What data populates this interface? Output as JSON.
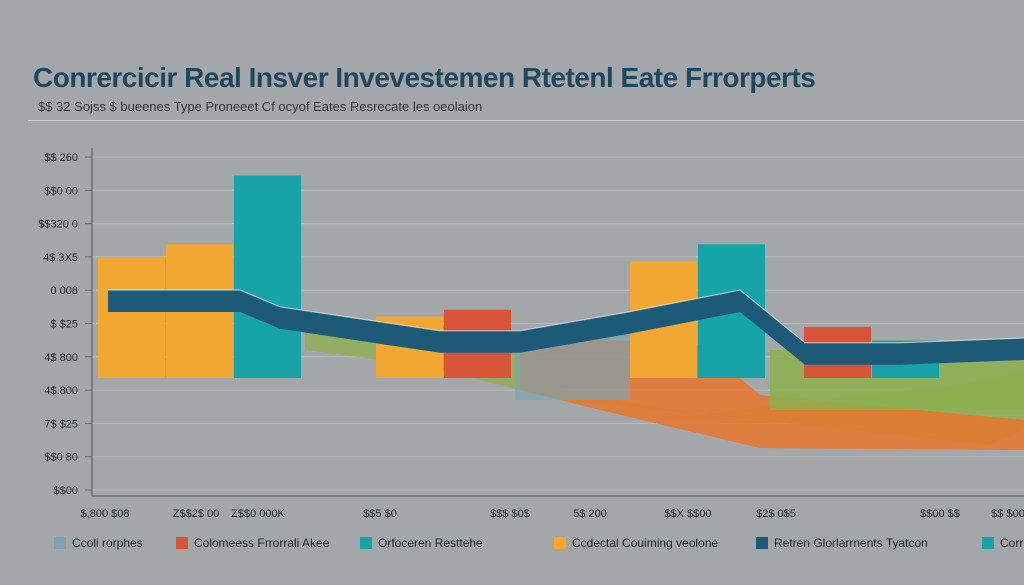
{
  "title": "Conrercicir Real Insver Invevestemen Rtetenl Eate Frrorperts",
  "subtitle": "$$ 32 Sojss $ bueenes Type Proneeet Cf ocyof Eates Resrecate les oeolaion",
  "colors": {
    "background": "#a4a7a9",
    "orange": "#f2a733",
    "red": "#d9553a",
    "teal": "#17a4a8",
    "green": "#8db04e",
    "navy": "#1d5a78",
    "blue_grey": "#7fa3b3"
  },
  "legend": [
    {
      "label": "Ccoli rorphes",
      "color": "#7fa3b3"
    },
    {
      "label": "Colomeess Frrorrali Akee",
      "color": "#d9553a"
    },
    {
      "label": "Orfoceren Resttehe",
      "color": "#17a4a8"
    },
    {
      "label": "Ccdectal Couiming veolone",
      "color": "#f2a733"
    },
    {
      "label": "Retren Glorlarrnents Tyatcon",
      "color": "#1d5a78"
    },
    {
      "label": "Corr",
      "color": "#17a4a8"
    }
  ],
  "chart_data": {
    "type": "bar",
    "title": "Conrercicir Real Insver Invevestemen Rtetenl Eate Frrorperts",
    "subtitle": "$$ 32 Sojss $ bueenes Type Proneeet Cf ocyof Eates Resrecate les oeolaion",
    "y_ticks": [
      "$$ 260",
      "$$0 00",
      "$$320 0",
      "4$ 3X5",
      "0 008",
      "$ $25",
      "4$ 800",
      "4$.800",
      "7$ $25",
      "$$0 80",
      "$$00"
    ],
    "x_ticks": [
      "$,800 $08",
      "Z$$2$ 00",
      "Z$$0 000K",
      "$$5 $0",
      "$$$ $0$",
      "5$ 200",
      "$$X $$00",
      "$2$ 0$5",
      "$$00 $$",
      "$$ $00"
    ],
    "bar_groups": [
      {
        "bars": [
          {
            "color": "orange",
            "value": 0.68
          },
          {
            "color": "orange",
            "value": 0.72
          },
          {
            "color": "teal",
            "value": 0.92
          }
        ]
      },
      {
        "bars": [
          {
            "color": "orange",
            "value": 0.51
          },
          {
            "color": "red",
            "value": 0.53
          }
        ]
      },
      {
        "bars": [
          {
            "color": "orange",
            "value": 0.67
          },
          {
            "color": "teal",
            "value": 0.72
          }
        ]
      },
      {
        "bars": [
          {
            "color": "red",
            "value": 0.48
          },
          {
            "color": "teal",
            "value": 0.44
          }
        ]
      }
    ],
    "line_series": [
      {
        "color": "navy",
        "values": [
          0.42,
          0.42,
          0.42,
          0.35,
          0.25,
          0.25,
          0.33,
          0.42,
          0.2,
          0.2,
          0.22
        ]
      }
    ],
    "grid": true
  }
}
